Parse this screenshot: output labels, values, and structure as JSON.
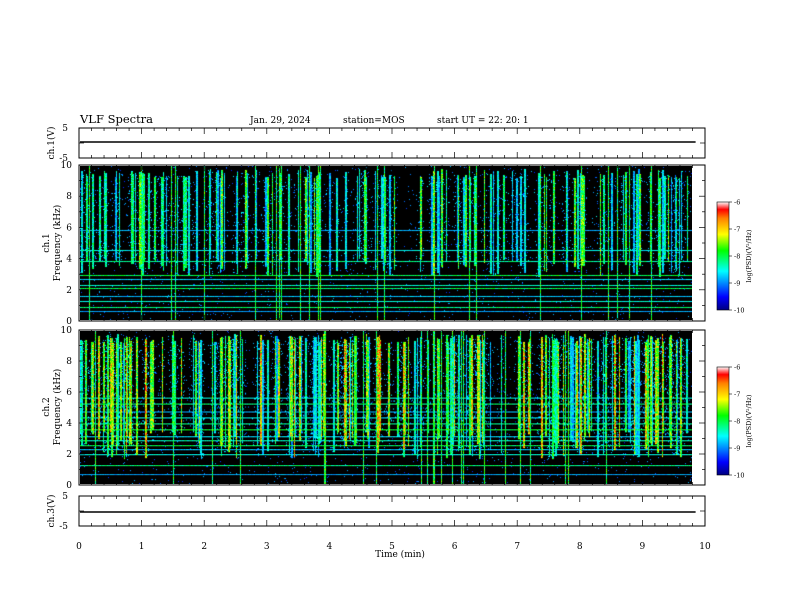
{
  "header": {
    "title": "VLF Spectra",
    "date": "Jan. 29, 2024",
    "station": "station=MOS",
    "start": "start UT =  22: 20: 1"
  },
  "chart_data": [
    {
      "type": "line",
      "name": "ch1-waveform",
      "ylabel": "ch.1(V)",
      "ylim": [
        -5,
        5
      ],
      "yticks": [
        "5",
        "-5"
      ],
      "level": 0
    },
    {
      "type": "heatmap",
      "name": "ch1-spectrogram",
      "ylabel_top": "ch.1",
      "ylabel": "Frequency (kHz)",
      "ylim": [
        0,
        10
      ],
      "yticks": [
        "0",
        "2",
        "4",
        "6",
        "8",
        "10"
      ],
      "xlim": [
        0,
        10
      ],
      "colorbar": {
        "label": "log(PSD)(V²/Hz)",
        "range": [
          -10,
          -6
        ],
        "ticks": [
          "-6",
          "-7",
          "-8",
          "-9",
          "-10"
        ]
      },
      "lines_khz": [
        0.5,
        0.8,
        1.2,
        1.5,
        2.0,
        2.2,
        2.6,
        2.9,
        3.8,
        4.5,
        5.8
      ],
      "burst_band_khz": [
        4.0,
        9.8
      ]
    },
    {
      "type": "heatmap",
      "name": "ch2-spectrogram",
      "ylabel_top": "ch.2",
      "ylabel": "Frequency (kHz)",
      "ylim": [
        0,
        10
      ],
      "yticks": [
        "0",
        "2",
        "4",
        "6",
        "8",
        "10"
      ],
      "xlim": [
        0,
        10
      ],
      "colorbar": {
        "label": "log(PSD)(V²/Hz)",
        "range": [
          -10,
          -6
        ],
        "ticks": [
          "-6",
          "-7",
          "-8",
          "-9",
          "-10"
        ]
      },
      "lines_khz": [
        0.6,
        1.2,
        1.9,
        2.2,
        2.5,
        2.8,
        3.1,
        3.5,
        3.9,
        4.3,
        4.7,
        5.2,
        5.6
      ],
      "burst_band_khz": [
        3.5,
        9.8
      ]
    },
    {
      "type": "line",
      "name": "ch3-waveform",
      "ylabel": "ch.3(V)",
      "ylim": [
        -5,
        5
      ],
      "yticks": [
        "5",
        "-5"
      ],
      "level": 0
    }
  ],
  "xaxis": {
    "label": "Time (min)",
    "ticks": [
      "0",
      "1",
      "2",
      "3",
      "4",
      "5",
      "6",
      "7",
      "8",
      "9",
      "10"
    ],
    "range": [
      0,
      10
    ],
    "data_end_min": 9.85
  },
  "colors": {
    "background": "#000000",
    "text": "#000000"
  }
}
